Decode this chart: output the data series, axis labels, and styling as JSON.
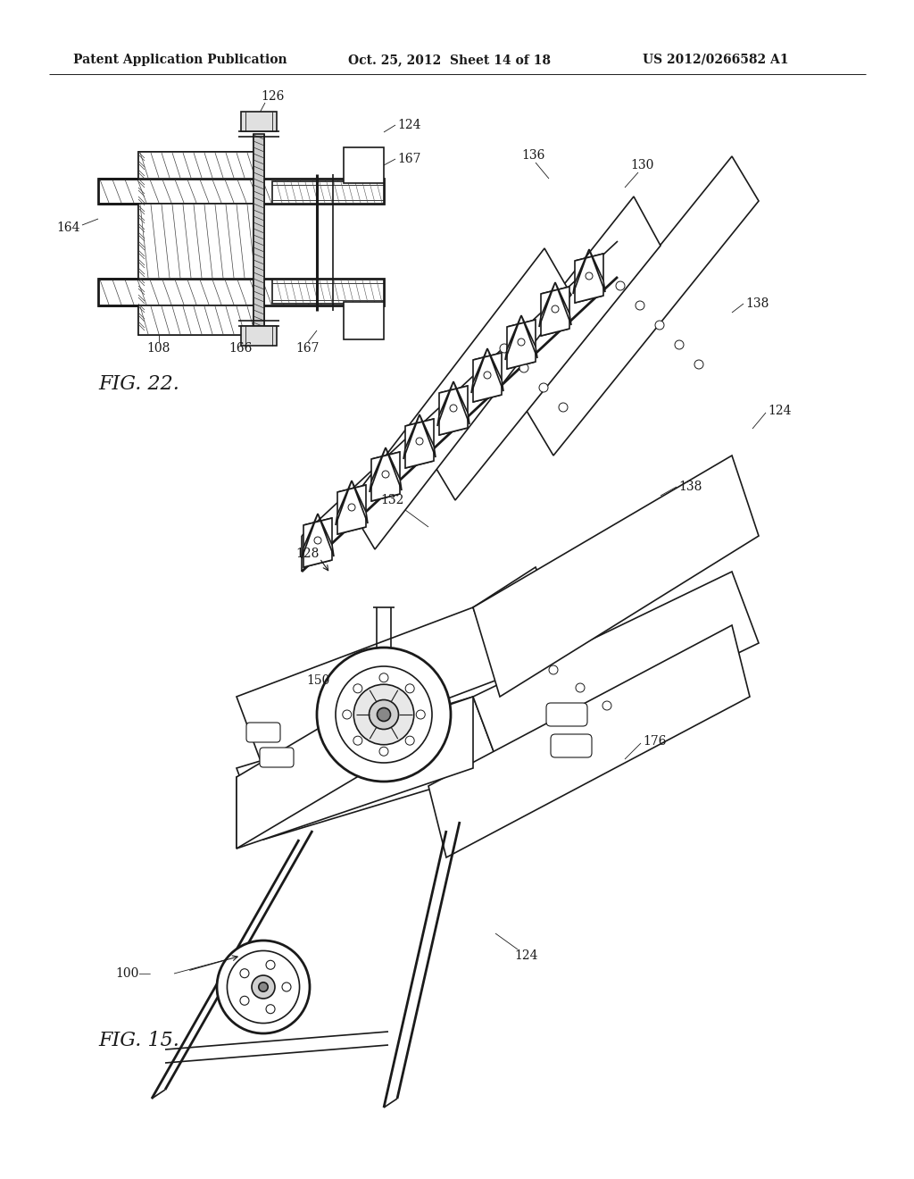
{
  "background_color": "#ffffff",
  "header_text_left": "Patent Application Publication",
  "header_text_center": "Oct. 25, 2012  Sheet 14 of 18",
  "header_text_right": "US 2012/0266582 A1",
  "fig22_label": "FIG. 22.",
  "fig15_label": "FIG. 15.",
  "line_color": "#1a1a1a",
  "lw": 1.2,
  "lw_thin": 0.6,
  "lw_thick": 2.0,
  "label_fontsize": 10,
  "header_fontsize": 10,
  "fig_label_fontsize": 16
}
